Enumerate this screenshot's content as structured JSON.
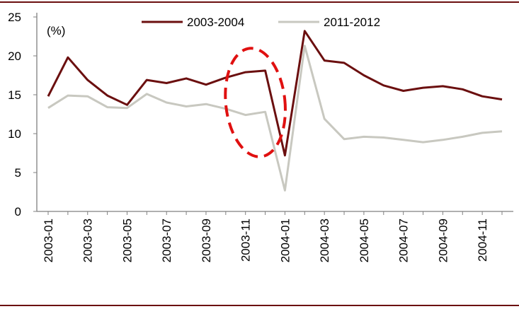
{
  "chart_data": {
    "type": "line",
    "unit_label": "(%)",
    "x": [
      "2003-01",
      "2003-02",
      "2003-03",
      "2003-04",
      "2003-05",
      "2003-06",
      "2003-07",
      "2003-08",
      "2003-09",
      "2003-10",
      "2003-11",
      "2003-12",
      "2004-01",
      "2004-02",
      "2004-03",
      "2004-04",
      "2004-05",
      "2004-06",
      "2004-07",
      "2004-08",
      "2004-09",
      "2004-10",
      "2004-11",
      "2004-12"
    ],
    "x_tick_labels": [
      "2003-01",
      "2003-03",
      "2003-05",
      "2003-07",
      "2003-09",
      "2003-11",
      "2004-01",
      "2004-03",
      "2004-05",
      "2004-07",
      "2004-09",
      "2004-11"
    ],
    "series": [
      {
        "name": "2003-2004",
        "color": "#6b0f0f",
        "values": [
          14.8,
          19.8,
          16.9,
          14.9,
          13.7,
          16.9,
          16.5,
          17.1,
          16.3,
          17.2,
          17.9,
          18.1,
          7.2,
          23.2,
          19.4,
          19.1,
          17.5,
          16.2,
          15.5,
          15.9,
          16.1,
          15.7,
          14.8,
          14.4
        ]
      },
      {
        "name": "2011-2012",
        "color": "#c8c8c0",
        "values": [
          13.3,
          14.9,
          14.8,
          13.4,
          13.3,
          15.1,
          14.0,
          13.5,
          13.8,
          13.2,
          12.4,
          12.8,
          2.7,
          21.3,
          11.9,
          9.3,
          9.6,
          9.5,
          9.2,
          8.9,
          9.2,
          9.6,
          10.1,
          10.3
        ]
      }
    ],
    "ylim": [
      0,
      25
    ],
    "yticks": [
      0,
      5,
      10,
      15,
      20,
      25
    ],
    "grid": false,
    "legend_position": "top",
    "highlight": {
      "shape": "dashed-ellipse",
      "color": "#e01010",
      "x_range": [
        "2003-10",
        "2004-01"
      ],
      "y_range": [
        7,
        21
      ]
    },
    "frame_color": "#6b0f0f"
  }
}
